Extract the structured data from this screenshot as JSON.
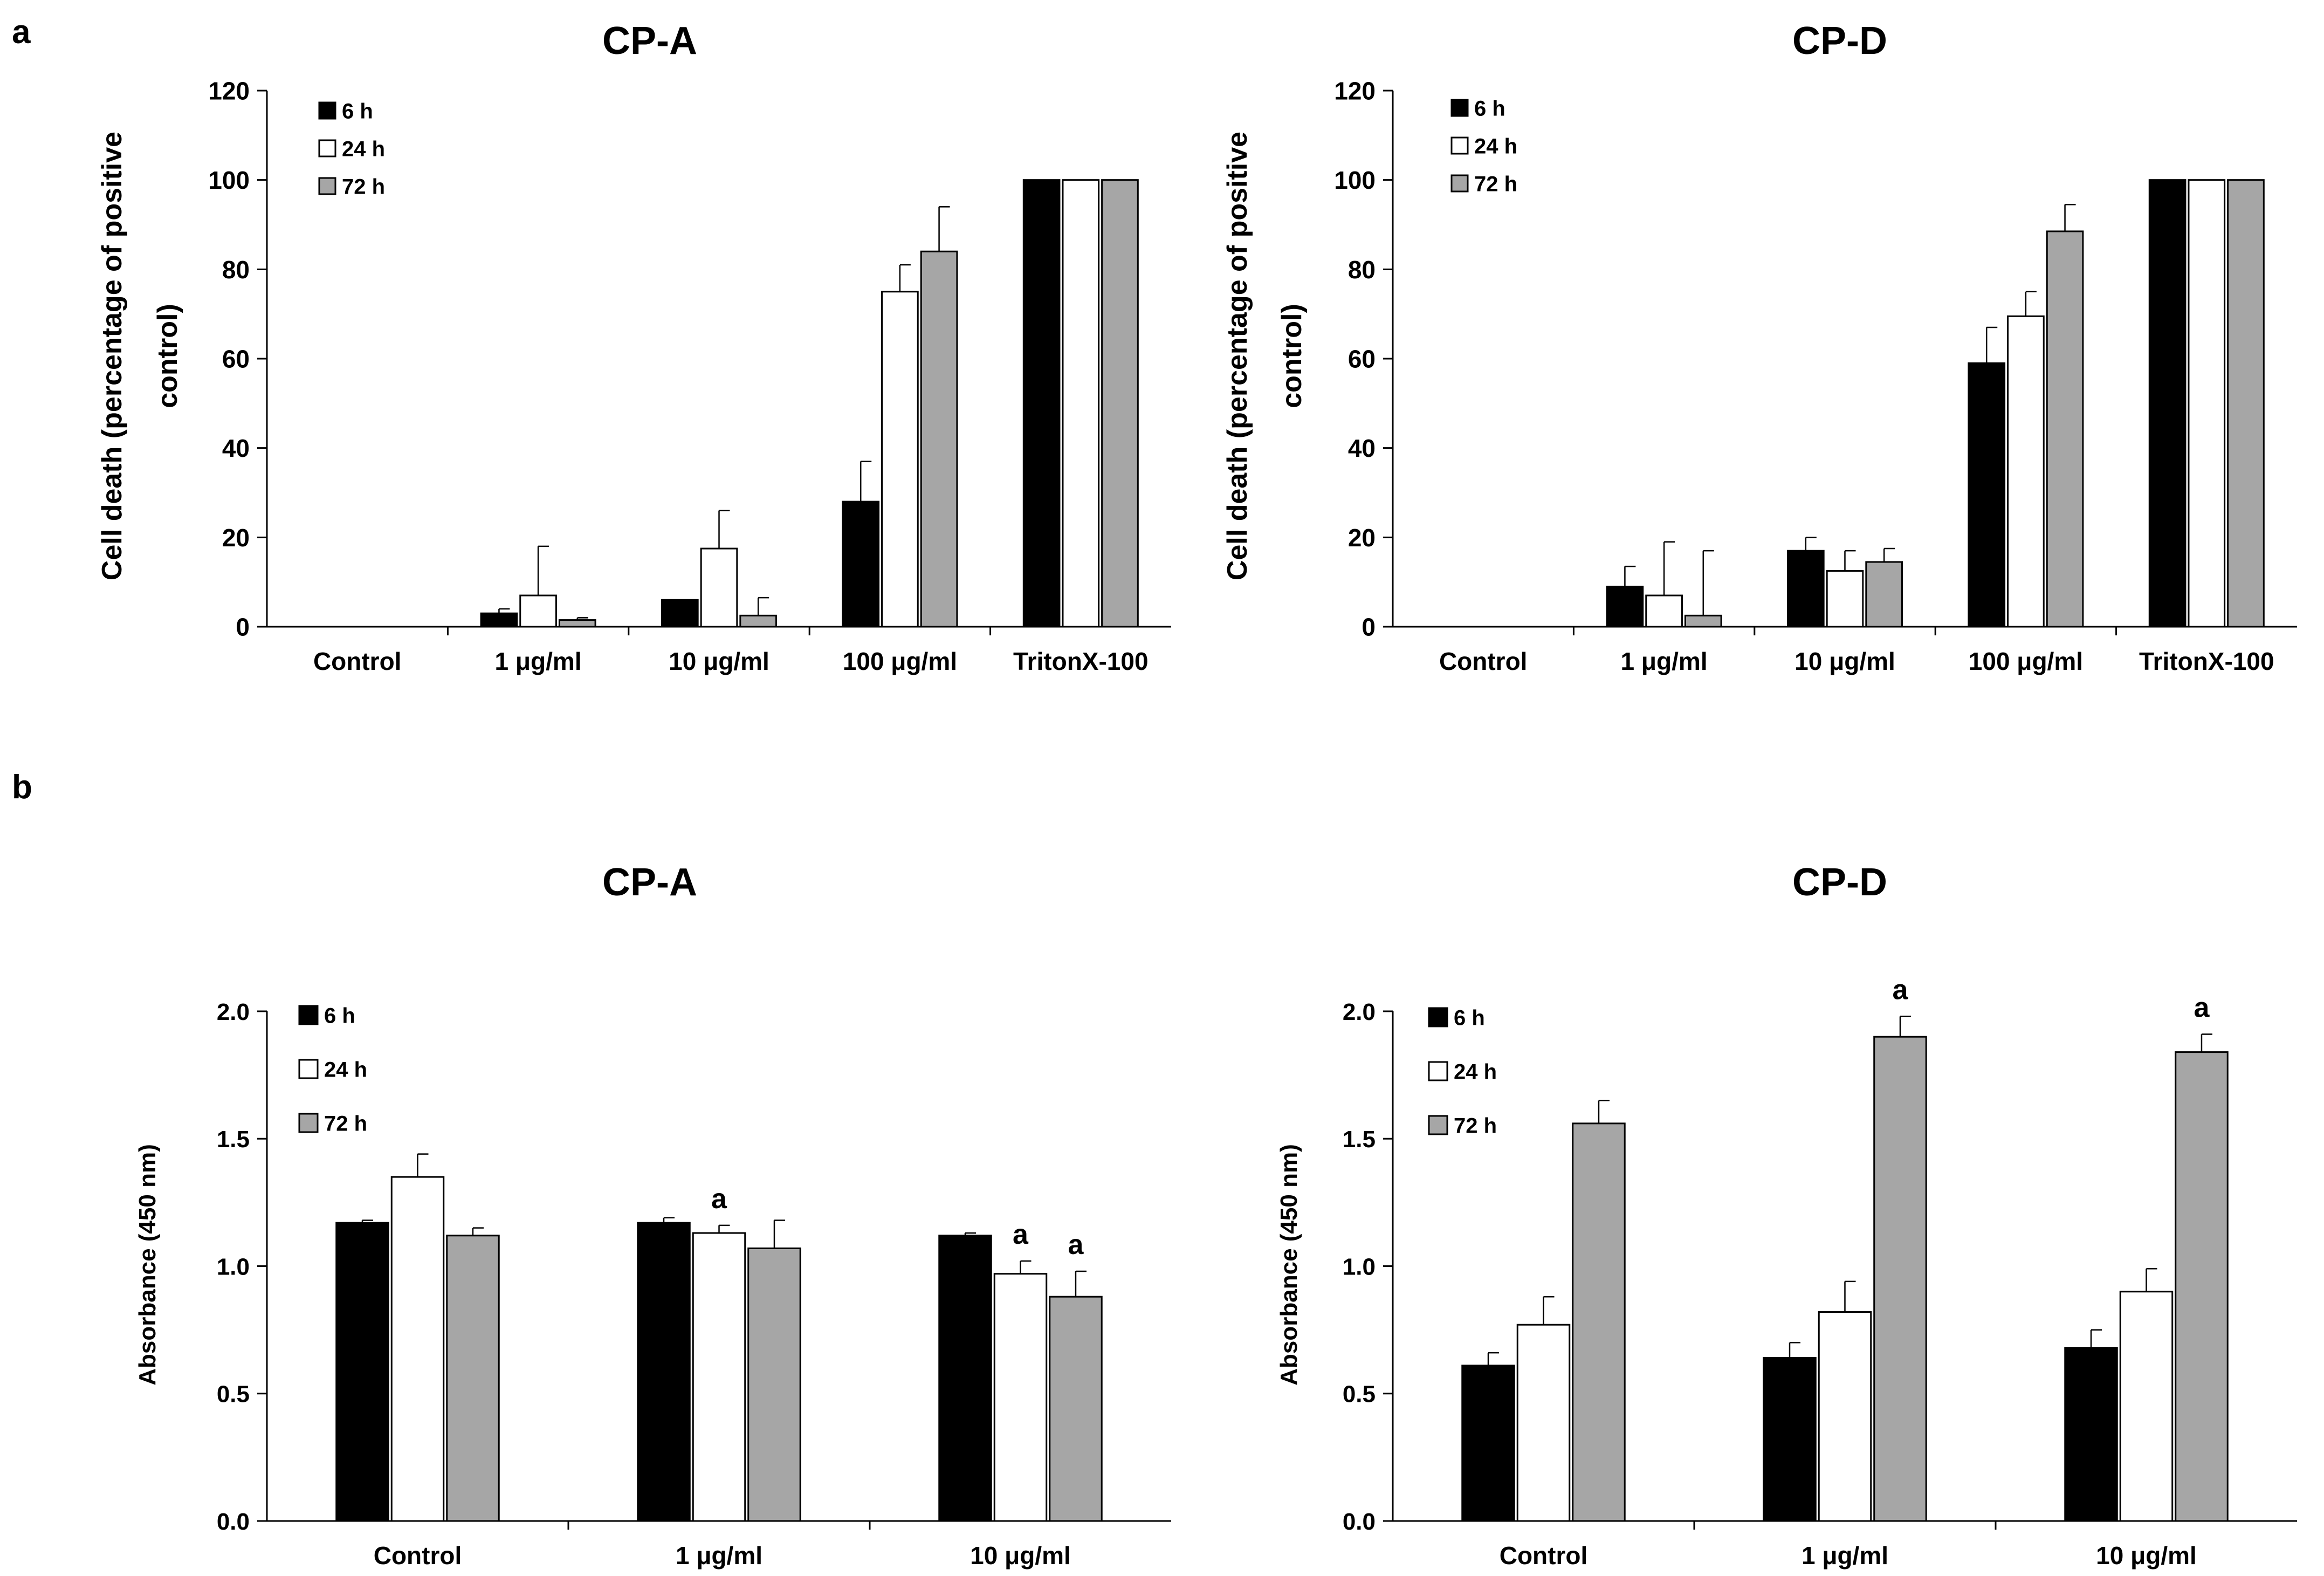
{
  "figure": {
    "panel_labels": [
      "a",
      "b"
    ]
  },
  "colors": {
    "6h": "#000000",
    "24h": "#ffffff",
    "72h": "#a6a6a6",
    "axis": "#000000"
  },
  "chart_data": [
    {
      "type": "bar",
      "panel": "a",
      "title": "CP-A",
      "ylabel": "Cell death (percentage of positive control)",
      "ylabel_lines": [
        "Cell death (percentage of positive",
        "control)"
      ],
      "xlabel": "",
      "ylim": [
        0,
        120
      ],
      "yticks": [
        0,
        20,
        40,
        60,
        80,
        100,
        120
      ],
      "ytick_labels": [
        "0",
        "20",
        "40",
        "60",
        "80",
        "100",
        "120"
      ],
      "legend_position": "top-left",
      "categories": [
        "Control",
        "1 μg/ml",
        "10 μg/ml",
        "100 μg/ml",
        "TritonX-100"
      ],
      "series": [
        {
          "name": "6 h",
          "color": "#000000",
          "values": [
            0,
            3,
            6,
            28,
            100
          ],
          "errors": [
            0,
            1,
            0,
            9,
            0
          ]
        },
        {
          "name": "24 h",
          "color": "#ffffff",
          "values": [
            0,
            7,
            17.5,
            75,
            100
          ],
          "errors": [
            0,
            11,
            8.5,
            6,
            0
          ]
        },
        {
          "name": "72 h",
          "color": "#a6a6a6",
          "values": [
            0,
            1.5,
            2.5,
            84,
            100
          ],
          "errors": [
            0,
            0.5,
            4,
            10,
            0
          ]
        }
      ],
      "annotations": [
        [
          "",
          "",
          "",
          "",
          ""
        ],
        [
          "",
          "",
          "",
          "",
          ""
        ],
        [
          "",
          "",
          "",
          "",
          ""
        ]
      ]
    },
    {
      "type": "bar",
      "panel": "a",
      "title": "CP-D",
      "ylabel": "Cell death (percentage of positive control)",
      "ylabel_lines": [
        "Cell death (percentage of positive",
        "control)"
      ],
      "xlabel": "",
      "ylim": [
        0,
        120
      ],
      "yticks": [
        0,
        20,
        40,
        60,
        80,
        100,
        120
      ],
      "ytick_labels": [
        "0",
        "20",
        "40",
        "60",
        "80",
        "100",
        "120"
      ],
      "legend_position": "top-left",
      "categories": [
        "Control",
        "1 μg/ml",
        "10 μg/ml",
        "100 μg/ml",
        "TritonX-100"
      ],
      "series": [
        {
          "name": "6 h",
          "color": "#000000",
          "values": [
            0,
            9,
            17,
            59,
            100
          ],
          "errors": [
            0,
            4.5,
            3,
            8,
            0
          ]
        },
        {
          "name": "24 h",
          "color": "#ffffff",
          "values": [
            0,
            7,
            12.5,
            69.5,
            100
          ],
          "errors": [
            0,
            12,
            4.5,
            5.5,
            0
          ]
        },
        {
          "name": "72 h",
          "color": "#a6a6a6",
          "values": [
            0,
            2.5,
            14.5,
            88.5,
            100
          ],
          "errors": [
            0,
            14.5,
            3,
            6,
            0
          ]
        }
      ],
      "annotations": [
        [
          "",
          "",
          "",
          "",
          ""
        ],
        [
          "",
          "",
          "",
          "",
          ""
        ],
        [
          "",
          "",
          "",
          "",
          ""
        ]
      ]
    },
    {
      "type": "bar",
      "panel": "b",
      "title": "CP-A",
      "ylabel": "Absorbance (450 nm)",
      "ylabel_lines": [
        "Absorbance (450 nm)"
      ],
      "xlabel": "",
      "ylim": [
        0,
        2.0
      ],
      "yticks": [
        0,
        0.5,
        1.0,
        1.5,
        2.0
      ],
      "ytick_labels": [
        "0.0",
        "0.5",
        "1.0",
        "1.5",
        "2.0"
      ],
      "legend_position": "top-left",
      "categories": [
        "Control",
        "1 μg/ml",
        "10 μg/ml"
      ],
      "series": [
        {
          "name": "6 h",
          "color": "#000000",
          "values": [
            1.17,
            1.17,
            1.12
          ],
          "errors": [
            0.01,
            0.02,
            0.01
          ]
        },
        {
          "name": "24 h",
          "color": "#ffffff",
          "values": [
            1.35,
            1.13,
            0.97
          ],
          "errors": [
            0.09,
            0.03,
            0.05
          ]
        },
        {
          "name": "72 h",
          "color": "#a6a6a6",
          "values": [
            1.12,
            1.07,
            0.88
          ],
          "errors": [
            0.03,
            0.11,
            0.1
          ]
        }
      ],
      "annotations": [
        [
          "",
          "",
          ""
        ],
        [
          "",
          "a",
          "a"
        ],
        [
          "",
          "",
          "a"
        ]
      ]
    },
    {
      "type": "bar",
      "panel": "b",
      "title": "CP-D",
      "ylabel": "Absorbance (450 nm)",
      "ylabel_lines": [
        "Absorbance (450 nm)"
      ],
      "xlabel": "",
      "ylim": [
        0,
        2.0
      ],
      "yticks": [
        0,
        0.5,
        1.0,
        1.5,
        2.0
      ],
      "ytick_labels": [
        "0.0",
        "0.5",
        "1.0",
        "1.5",
        "2.0"
      ],
      "legend_position": "top-left",
      "categories": [
        "Control",
        "1 μg/ml",
        "10 μg/ml"
      ],
      "series": [
        {
          "name": "6 h",
          "color": "#000000",
          "values": [
            0.61,
            0.64,
            0.68
          ],
          "errors": [
            0.05,
            0.06,
            0.07
          ]
        },
        {
          "name": "24 h",
          "color": "#ffffff",
          "values": [
            0.77,
            0.82,
            0.9
          ],
          "errors": [
            0.11,
            0.12,
            0.09
          ]
        },
        {
          "name": "72 h",
          "color": "#a6a6a6",
          "values": [
            1.56,
            1.9,
            1.84
          ],
          "errors": [
            0.09,
            0.08,
            0.07
          ]
        }
      ],
      "annotations": [
        [
          "",
          "",
          ""
        ],
        [
          "",
          "",
          ""
        ],
        [
          "",
          "a",
          "a"
        ]
      ]
    }
  ]
}
